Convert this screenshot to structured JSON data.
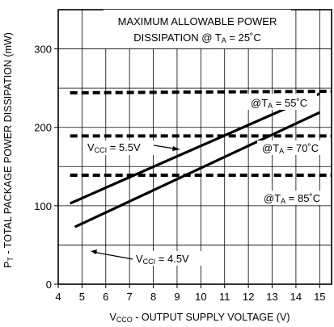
{
  "chart_data": {
    "type": "line",
    "title_line1": "MAXIMUM ALLOWABLE POWER",
    "title_line2": "DISSIPATION @ T",
    "title_line2_sub": "A",
    "title_line2_tail": " = 25˚C",
    "xlabel_pre": "V",
    "xlabel_sub": "CCO",
    "xlabel_post": " - OUTPUT SUPPLY VOLTAGE (V)",
    "ylabel_pre": "P",
    "ylabel_sub": "T",
    "ylabel_post": " - TOTAL PACKAGE POWER DISSIPATION (mW)",
    "xlim": [
      4,
      15.5
    ],
    "ylim": [
      0,
      350
    ],
    "x_ticks": [
      "4",
      "5",
      "6",
      "7",
      "8",
      "9",
      "10",
      "11",
      "12",
      "13",
      "14",
      "15"
    ],
    "y_ticks": [
      "0",
      "100",
      "200",
      "300"
    ],
    "grid": true,
    "series": [
      {
        "name": "VCCI = 5.5V",
        "label_pre": "V",
        "label_sub": "CCI",
        "label_post": " = 5.5V",
        "style": "solid",
        "x": [
          4.5,
          15
        ],
        "y": [
          103,
          243
        ]
      },
      {
        "name": "VCCI = 4.5V",
        "label_pre": "V",
        "label_sub": "CCI",
        "label_post": " = 4.5V",
        "style": "solid",
        "x": [
          4.7,
          15
        ],
        "y": [
          73,
          219
        ]
      },
      {
        "name": "@TA = 55˚C",
        "label_pre": "@T",
        "label_sub": "A",
        "label_post": " = 55˚C",
        "style": "dashed",
        "x": [
          4.5,
          15.5
        ],
        "y": [
          244,
          246
        ]
      },
      {
        "name": "@TA = 70˚C",
        "label_pre": "@T",
        "label_sub": "A",
        "label_post": " = 70˚C",
        "style": "dashed",
        "x": [
          4.5,
          15.5
        ],
        "y": [
          189,
          189
        ]
      },
      {
        "name": "@TA = 85˚C",
        "label_pre": "@T",
        "label_sub": "A",
        "label_post": " = 85˚C",
        "style": "dashed",
        "x": [
          4.5,
          15.5
        ],
        "y": [
          139,
          139
        ]
      }
    ]
  }
}
